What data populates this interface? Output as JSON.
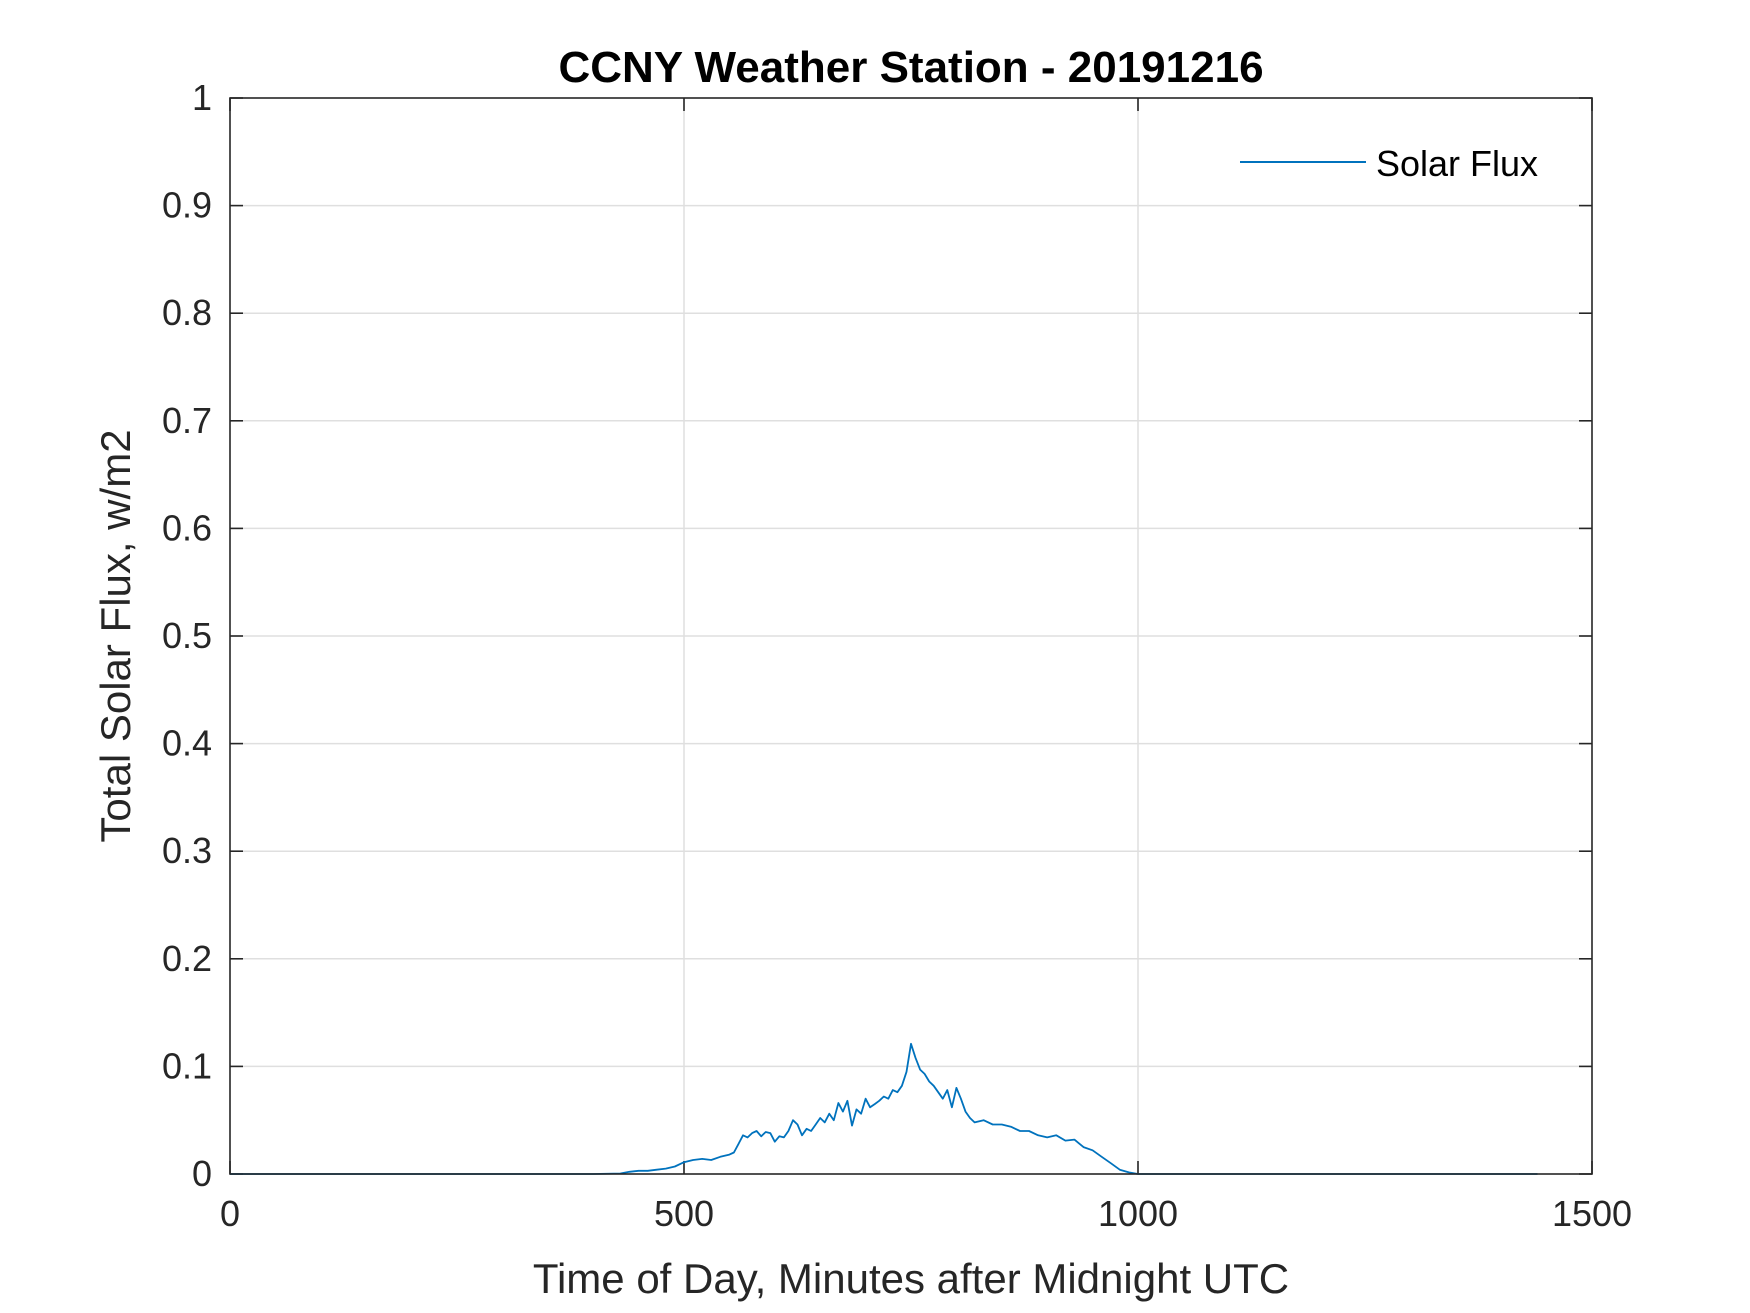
{
  "chart_data": {
    "type": "line",
    "title": "CCNY Weather Station - 20191216",
    "xlabel": "Time of Day, Minutes after Midnight UTC",
    "ylabel": "Total Solar Flux, w/m2",
    "xlim": [
      0,
      1500
    ],
    "ylim": [
      0,
      1
    ],
    "xticks": [
      0,
      500,
      1000,
      1500
    ],
    "xtick_labels": [
      "0",
      "500",
      "1000",
      "1500"
    ],
    "yticks": [
      0,
      0.1,
      0.2,
      0.3,
      0.4,
      0.5,
      0.6,
      0.7,
      0.8,
      0.9,
      1
    ],
    "ytick_labels": [
      "0",
      "0.1",
      "0.2",
      "0.3",
      "0.4",
      "0.5",
      "0.6",
      "0.7",
      "0.8",
      "0.9",
      "1"
    ],
    "grid": true,
    "legend": {
      "position": "top-right",
      "entries": [
        "Solar Flux"
      ]
    },
    "series": [
      {
        "name": "Solar Flux",
        "color": "#0072BD",
        "x": [
          0,
          100,
          200,
          300,
          400,
          430,
          440,
          450,
          460,
          470,
          480,
          490,
          500,
          505,
          510,
          520,
          530,
          540,
          550,
          555,
          560,
          565,
          570,
          575,
          580,
          585,
          590,
          595,
          600,
          605,
          610,
          615,
          620,
          625,
          630,
          635,
          640,
          645,
          650,
          655,
          660,
          665,
          670,
          675,
          680,
          685,
          690,
          695,
          700,
          705,
          710,
          715,
          720,
          725,
          730,
          735,
          740,
          745,
          750,
          755,
          760,
          765,
          770,
          775,
          780,
          785,
          790,
          795,
          800,
          805,
          810,
          815,
          820,
          830,
          840,
          850,
          860,
          870,
          880,
          890,
          900,
          910,
          920,
          930,
          940,
          950,
          960,
          970,
          980,
          990,
          1000,
          1010,
          1100,
          1200,
          1300,
          1440
        ],
        "values": [
          0,
          0,
          0,
          0,
          0,
          0.0005,
          0.002,
          0.003,
          0.003,
          0.004,
          0.005,
          0.007,
          0.011,
          0.012,
          0.013,
          0.014,
          0.013,
          0.016,
          0.018,
          0.02,
          0.028,
          0.036,
          0.034,
          0.038,
          0.04,
          0.035,
          0.039,
          0.038,
          0.03,
          0.035,
          0.034,
          0.04,
          0.05,
          0.046,
          0.036,
          0.042,
          0.04,
          0.046,
          0.052,
          0.048,
          0.056,
          0.05,
          0.066,
          0.058,
          0.068,
          0.045,
          0.06,
          0.056,
          0.07,
          0.062,
          0.065,
          0.068,
          0.072,
          0.07,
          0.078,
          0.076,
          0.082,
          0.095,
          0.121,
          0.108,
          0.097,
          0.093,
          0.086,
          0.082,
          0.076,
          0.07,
          0.078,
          0.062,
          0.08,
          0.07,
          0.058,
          0.052,
          0.048,
          0.05,
          0.046,
          0.046,
          0.044,
          0.04,
          0.04,
          0.036,
          0.034,
          0.036,
          0.031,
          0.032,
          0.025,
          0.022,
          0.016,
          0.01,
          0.004,
          0.0015,
          0,
          0,
          0,
          0,
          0,
          0
        ]
      }
    ]
  }
}
